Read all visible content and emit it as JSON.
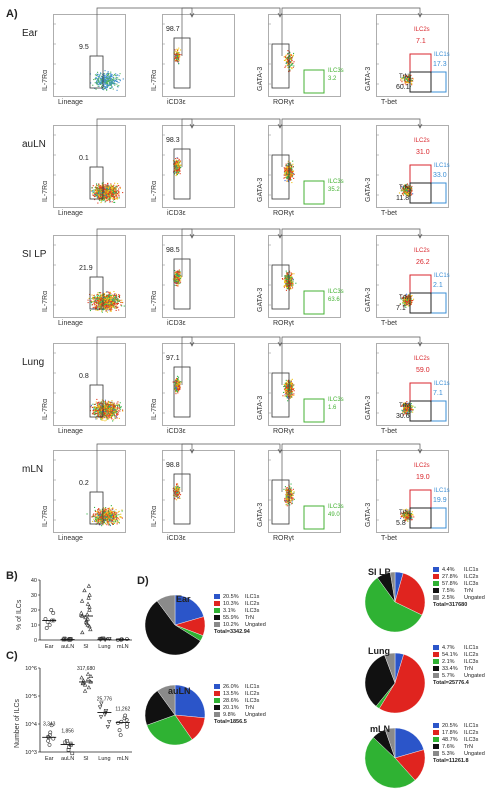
{
  "figure": {
    "panel_A": "A)",
    "panel_B": "B)",
    "panel_C": "C)",
    "panel_D": "D)"
  },
  "axes": {
    "lineage": "Lineage",
    "il7ra": "IL-7Rα",
    "icd3e": "iCD3ε",
    "gata3": "GATA-3",
    "rorgt": "RORγt",
    "tbet": "T-bet"
  },
  "rows": [
    {
      "tissue": "Ear",
      "g1": "9.5",
      "g2": "98.7",
      "ilc3": "ILC3s",
      "ilc3v": "3.2",
      "ilc2": "ILC2s",
      "ilc2v": "7.1",
      "ilc1": "ILC1s",
      "ilc1v": "17.3",
      "trn": "TrN",
      "trnv": "60.1"
    },
    {
      "tissue": "auLN",
      "g1": "0.1",
      "g2": "98.3",
      "ilc3": "ILC3s",
      "ilc3v": "35.2",
      "ilc2": "ILC2s",
      "ilc2v": "31.0",
      "ilc1": "ILC1s",
      "ilc1v": "33.0",
      "trn": "TrN",
      "trnv": "11.8"
    },
    {
      "tissue": "SI LP",
      "g1": "21.9",
      "g2": "98.5",
      "ilc3": "ILC3s",
      "ilc3v": "63.6",
      "ilc2": "ILC2s",
      "ilc2v": "26.2",
      "ilc1": "ILC1s",
      "ilc1v": "2.1",
      "trn": "TrN",
      "trnv": "7.1"
    },
    {
      "tissue": "Lung",
      "g1": "0.8",
      "g2": "97.1",
      "ilc3": "ILC3s",
      "ilc3v": "1.6",
      "ilc2": "ILC2s",
      "ilc2v": "59.0",
      "ilc1": "ILC1s",
      "ilc1v": "7.1",
      "trn": "TrN",
      "trnv": "30.6"
    },
    {
      "tissue": "mLN",
      "g1": "0.2",
      "g2": "98.8",
      "ilc3": "ILC3s",
      "ilc3v": "49.0",
      "ilc2": "ILC2s",
      "ilc2v": "19.0",
      "ilc1": "ILC1s",
      "ilc1v": "19.9",
      "trn": "TrN",
      "trnv": "5.8"
    }
  ],
  "chart_data": [
    {
      "type": "scatter",
      "panel": "B",
      "ylabel": "% of ILCs",
      "categories": [
        "Ear",
        "auLN",
        "SI",
        "Lung",
        "mLN"
      ],
      "yticks": [
        "0",
        "10",
        "20",
        "30",
        "40"
      ],
      "ylim": [
        0,
        40
      ],
      "medians": [
        13,
        0.3,
        16,
        0.5,
        0.3
      ],
      "points": [
        [
          8,
          10,
          12,
          13,
          13,
          14,
          18,
          20
        ],
        [
          0.1,
          0.2,
          0.3,
          0.4,
          0.5,
          0.6,
          0.8,
          1.0
        ],
        [
          5,
          7,
          9,
          10,
          11,
          12,
          13,
          14,
          15,
          16,
          17,
          18,
          20,
          22,
          24,
          26,
          28,
          30,
          33,
          36
        ],
        [
          0.2,
          0.4,
          0.5,
          0.7,
          0.9,
          1.0,
          1.2
        ],
        [
          0.1,
          0.2,
          0.3,
          0.4,
          0.5,
          0.6
        ]
      ]
    },
    {
      "type": "scatter",
      "panel": "C",
      "ylabel": "Number of ILCs",
      "categories": [
        "Ear",
        "auLN",
        "SI",
        "Lung",
        "mLN"
      ],
      "yticks": [
        "10^3",
        "10^4",
        "10^5",
        "10^6"
      ],
      "log_scale": true,
      "ylim": [
        1000,
        1000000
      ],
      "labels": [
        "3,343",
        "1,856",
        "317,680",
        "25,776",
        "11,262"
      ],
      "medians": [
        3343,
        1856,
        317680,
        25776,
        11262
      ],
      "points": [
        [
          1800,
          2500,
          3000,
          3300,
          3500,
          4000,
          5000,
          9000
        ],
        [
          900,
          1200,
          1500,
          1800,
          2000,
          2200,
          2500
        ],
        [
          150000,
          200000,
          250000,
          280000,
          300000,
          320000,
          350000,
          400000,
          450000,
          500000,
          600000
        ],
        [
          8000,
          12000,
          18000,
          22000,
          26000,
          30000,
          40000,
          55000
        ],
        [
          4000,
          6000,
          8000,
          10000,
          11000,
          12000,
          14000,
          16000,
          20000
        ]
      ]
    },
    {
      "type": "pie",
      "panel": "D",
      "pies": [
        {
          "title": "Ear",
          "total": "Total=3342.94",
          "slices": [
            {
              "label": "ILC1s",
              "value": 20.5,
              "pct": "20.5%"
            },
            {
              "label": "ILC2s",
              "value": 10.3,
              "pct": "10.3%"
            },
            {
              "label": "ILC3s",
              "value": 3.1,
              "pct": "3.1%"
            },
            {
              "label": "TrN",
              "value": 55.9,
              "pct": "55.9%"
            },
            {
              "label": "Ungated",
              "value": 10.2,
              "pct": "10.2%"
            }
          ]
        },
        {
          "title": "auLN",
          "total": "Total=1856.5",
          "slices": [
            {
              "label": "ILC1s",
              "value": 26.0,
              "pct": "26.0%"
            },
            {
              "label": "ILC2s",
              "value": 13.5,
              "pct": "13.5%"
            },
            {
              "label": "ILC3s",
              "value": 28.6,
              "pct": "28.6%"
            },
            {
              "label": "TrN",
              "value": 20.1,
              "pct": "20.1%"
            },
            {
              "label": "Ungated",
              "value": 9.8,
              "pct": "9.8%"
            }
          ]
        },
        {
          "title": "SI LP",
          "total": "Total=317680",
          "slices": [
            {
              "label": "ILC1s",
              "value": 4.4,
              "pct": "4.4%"
            },
            {
              "label": "ILC2s",
              "value": 27.8,
              "pct": "27.8%"
            },
            {
              "label": "ILC3s",
              "value": 57.8,
              "pct": "57.8%"
            },
            {
              "label": "TrN",
              "value": 7.5,
              "pct": "7.5%"
            },
            {
              "label": "Ungated",
              "value": 2.5,
              "pct": "2.5%"
            }
          ]
        },
        {
          "title": "Lung",
          "total": "Total=25776.4",
          "slices": [
            {
              "label": "ILC1s",
              "value": 4.7,
              "pct": "4.7%"
            },
            {
              "label": "ILC2s",
              "value": 54.1,
              "pct": "54.1%"
            },
            {
              "label": "ILC3s",
              "value": 2.1,
              "pct": "2.1%"
            },
            {
              "label": "TrN",
              "value": 33.4,
              "pct": "33.4%"
            },
            {
              "label": "Ungated",
              "value": 5.7,
              "pct": "5.7%"
            }
          ]
        },
        {
          "title": "mLN",
          "total": "Total=11261.8",
          "slices": [
            {
              "label": "ILC1s",
              "value": 20.5,
              "pct": "20.5%"
            },
            {
              "label": "ILC2s",
              "value": 17.8,
              "pct": "17.8%"
            },
            {
              "label": "ILC3s",
              "value": 48.7,
              "pct": "48.7%"
            },
            {
              "label": "TrN",
              "value": 7.6,
              "pct": "7.6%"
            },
            {
              "label": "Ungated",
              "value": 5.3,
              "pct": "5.3%"
            }
          ]
        }
      ]
    }
  ],
  "colors": {
    "ilc1": "#2b55c9",
    "ilc2": "#e0241f",
    "ilc3": "#2fb233",
    "trn": "#111111",
    "ungated": "#8a8a8a",
    "gate_red": "#d9262c",
    "gate_blue": "#3b8fd6",
    "gate_green": "#44b233",
    "gate_black": "#222222"
  }
}
